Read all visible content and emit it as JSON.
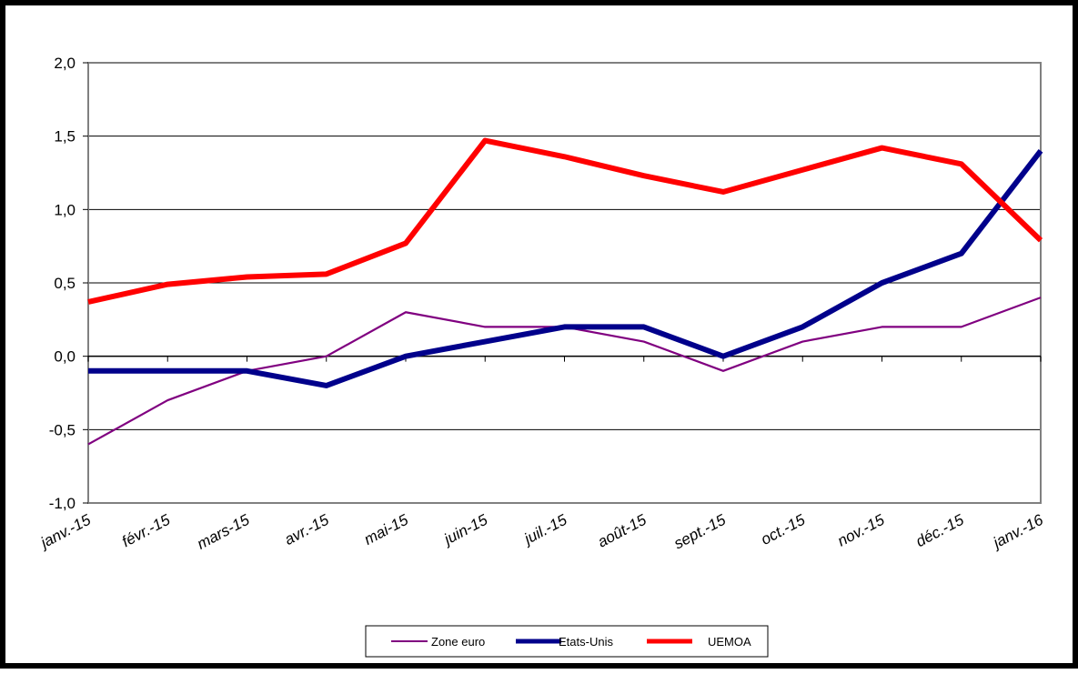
{
  "chart_data": {
    "type": "line",
    "title": "",
    "xlabel": "",
    "ylabel": "",
    "categories": [
      "janv.-15",
      "févr.-15",
      "mars-15",
      "avr.-15",
      "mai-15",
      "juin-15",
      "juil.-15",
      "août-15",
      "sept.-15",
      "oct.-15",
      "nov.-15",
      "déc.-15",
      "janv.-16"
    ],
    "y_ticks": [
      "2,0",
      "1,5",
      "1,0",
      "0,5",
      "0,0",
      "-0,5",
      "-1,0"
    ],
    "ylim": [
      -1.0,
      2.0
    ],
    "grid": "horizontal",
    "legend_position": "bottom",
    "series": [
      {
        "name": "Zone euro",
        "color": "#800080",
        "width": "thin",
        "values": [
          -0.6,
          -0.3,
          -0.1,
          0.0,
          0.3,
          0.2,
          0.2,
          0.1,
          -0.1,
          0.1,
          0.2,
          0.2,
          0.4
        ]
      },
      {
        "name": "Etats-Unis",
        "color": "#00008b",
        "width": "thick",
        "values": [
          -0.1,
          -0.1,
          -0.1,
          -0.2,
          0.0,
          0.1,
          0.2,
          0.2,
          0.0,
          0.2,
          0.5,
          0.7,
          1.4
        ]
      },
      {
        "name": "UEMOA",
        "color": "#ff0000",
        "width": "thick",
        "values": [
          0.37,
          0.49,
          0.54,
          0.56,
          0.77,
          1.47,
          1.36,
          1.23,
          1.12,
          1.27,
          1.42,
          1.31,
          0.79
        ]
      }
    ]
  }
}
